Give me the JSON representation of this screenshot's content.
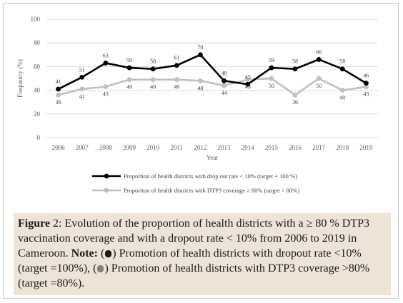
{
  "chart_data": {
    "type": "line",
    "x": [
      "2006",
      "2007",
      "2008",
      "2009",
      "2010",
      "2011",
      "2012",
      "2013",
      "2014",
      "2015",
      "2016",
      "2017",
      "2018",
      "2019"
    ],
    "ylabel": "Frequency (%)",
    "xlabel": "Year",
    "ylim": [
      0,
      100
    ],
    "yticks": [
      0,
      20,
      40,
      60,
      80,
      100
    ],
    "grid": "horizontal",
    "legend_position": "bottom",
    "series": [
      {
        "name": "Proportion of health districts with drop out rate < 10% (target = 100 %)",
        "values": [
          41,
          51,
          63,
          59,
          58,
          61,
          70,
          48,
          45,
          59,
          58,
          66,
          58,
          46
        ],
        "color": "#000000"
      },
      {
        "name": "Proportion of health districts with DTP3 coverage ≥ 80% (target > 80%)",
        "values": [
          36,
          41,
          43,
          49,
          49,
          49,
          48,
          44,
          49,
          50,
          36,
          50,
          40,
          43
        ],
        "color": "#bfbfbf"
      }
    ]
  },
  "caption": {
    "label": "Figure",
    "number": " 2:",
    "text1": " Evolution of the proportion of health districts with a ≥ 80 % DTP3 vaccination coverage and with a dropout rate < 10% from 2006 to 2019 in Cameroon. ",
    "note_label": "Note:",
    "text2": " (",
    "text3": ") Promotion of health districts with dropout rate <10% (target =100%), (",
    "text4": ") Promotion of health districts with DTP3 coverage >80% (target =80%).",
    "dot1_color": "#1a1a1a",
    "dot2_color": "#808080"
  }
}
